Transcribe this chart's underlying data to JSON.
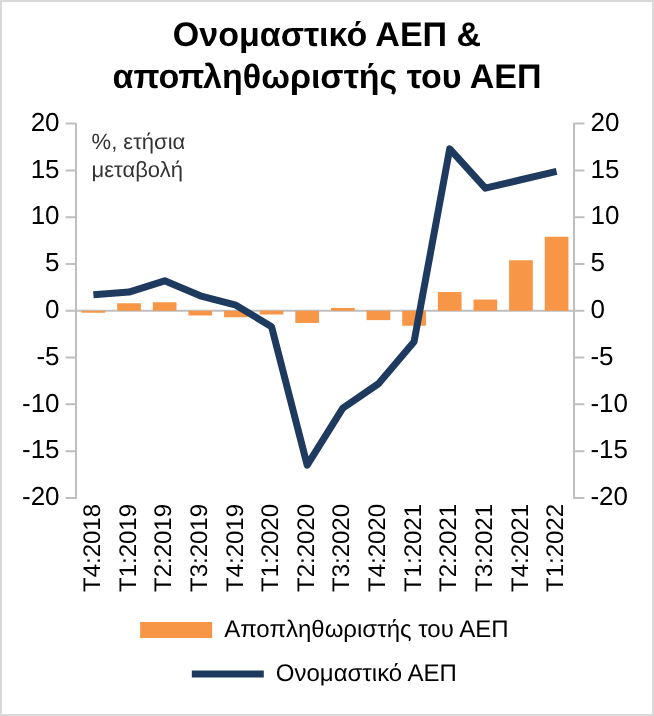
{
  "chart_data": {
    "type": "bar",
    "title": "Ονομαστικό ΑΕΠ & αποπληθωριστής του ΑΕΠ",
    "categories": [
      "T4:2018",
      "T1:2019",
      "T2:2019",
      "T3:2019",
      "T4:2019",
      "T1:2020",
      "T2:2020",
      "T3:2020",
      "T4:2020",
      "T1:2021",
      "T2:2021",
      "T3:2021",
      "T4:2021",
      "T1:2022"
    ],
    "series": [
      {
        "name": "Αποπληθωριστής του ΑΕΠ",
        "color": "#f79646",
        "values": [
          -0.2,
          0.8,
          0.9,
          -0.5,
          -0.7,
          -0.4,
          -1.3,
          0.3,
          -1.0,
          -1.6,
          2.0,
          1.2,
          5.4,
          7.9
        ]
      },
      {
        "name": "Ονομαστικό ΑΕΠ",
        "type": "line",
        "color": "#1f3a5f",
        "values": [
          1.7,
          2.0,
          3.2,
          1.6,
          0.6,
          -1.7,
          -16.5,
          -10.4,
          -7.8,
          -3.3,
          17.3,
          13.1,
          14.0,
          14.9
        ]
      }
    ],
    "ylim": [
      -20,
      20
    ],
    "yticks": [
      -20,
      -15,
      -10,
      -5,
      0,
      5,
      10,
      15,
      20
    ],
    "y2lim": [
      -20,
      20
    ],
    "y2ticks": [
      -20,
      -15,
      -10,
      -5,
      0,
      5,
      10,
      15,
      20
    ],
    "annotations": [
      "%, ετήσια μεταβολή"
    ],
    "legend": "bottom",
    "line_style": "solid"
  }
}
